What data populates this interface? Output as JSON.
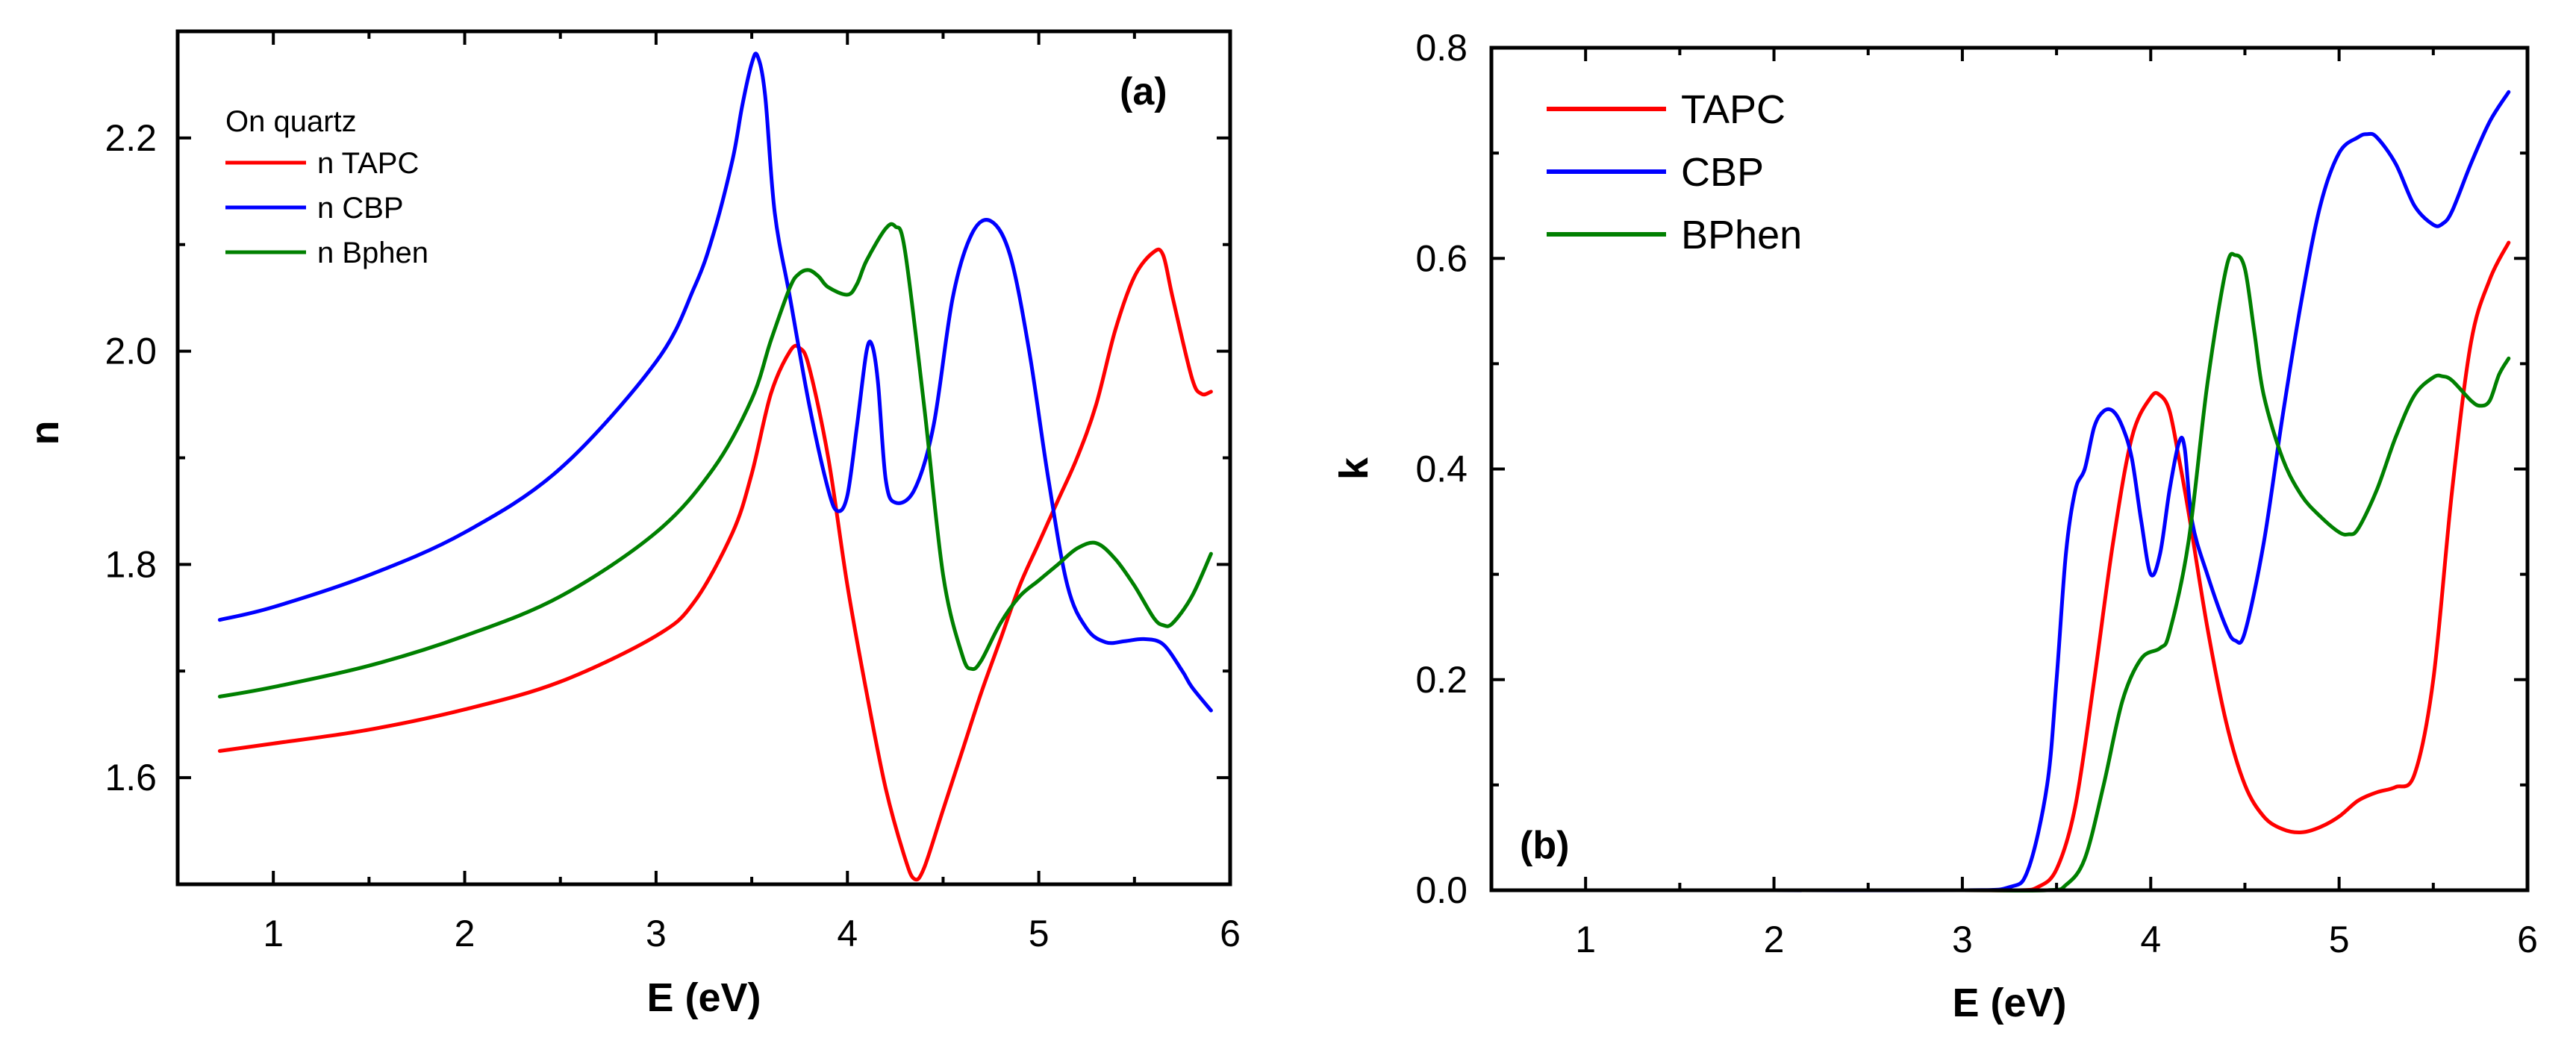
{
  "chart_data": [
    {
      "type": "line",
      "panel_label": "(a)",
      "xlabel": "E (eV)",
      "ylabel": "n",
      "xlim": [
        0.5,
        6
      ],
      "ylim": [
        1.5,
        2.3
      ],
      "xticks": [
        1,
        2,
        3,
        4,
        5,
        6
      ],
      "xtick_labels": [
        "1",
        "2",
        "3",
        "4",
        "5",
        "6"
      ],
      "yticks": [
        1.6,
        1.8,
        2.0,
        2.2
      ],
      "ytick_labels": [
        "1.6",
        "1.8",
        "2.0",
        "2.2"
      ],
      "legend_title": "On quartz",
      "legend_position": "top-left",
      "series": [
        {
          "name": "n TAPC",
          "color": "#ff0000",
          "x": [
            0.72,
            1.0,
            1.5,
            2.0,
            2.5,
            3.0,
            3.2,
            3.4,
            3.5,
            3.6,
            3.7,
            3.75,
            3.8,
            3.9,
            4.0,
            4.1,
            4.2,
            4.3,
            4.35,
            4.4,
            4.5,
            4.6,
            4.7,
            4.8,
            4.9,
            5.0,
            5.1,
            5.2,
            5.3,
            5.4,
            5.5,
            5.6,
            5.65,
            5.7,
            5.8,
            5.85,
            5.9
          ],
          "y": [
            1.625,
            1.632,
            1.645,
            1.664,
            1.69,
            1.733,
            1.765,
            1.83,
            1.885,
            1.96,
            2.0,
            2.003,
            1.985,
            1.9,
            1.78,
            1.68,
            1.59,
            1.525,
            1.505,
            1.515,
            1.57,
            1.625,
            1.68,
            1.73,
            1.78,
            1.82,
            1.86,
            1.9,
            1.95,
            2.02,
            2.07,
            2.093,
            2.09,
            2.05,
            1.975,
            1.96,
            1.962
          ]
        },
        {
          "name": "n CBP",
          "color": "#0000ff",
          "x": [
            0.72,
            1.0,
            1.5,
            2.0,
            2.5,
            3.0,
            3.2,
            3.3,
            3.4,
            3.45,
            3.5,
            3.53,
            3.57,
            3.62,
            3.7,
            3.8,
            3.9,
            3.95,
            4.0,
            4.05,
            4.1,
            4.13,
            4.16,
            4.2,
            4.25,
            4.35,
            4.45,
            4.55,
            4.65,
            4.75,
            4.85,
            4.95,
            5.05,
            5.15,
            5.25,
            5.35,
            5.45,
            5.55,
            5.65,
            5.75,
            5.8,
            5.9
          ],
          "y": [
            1.748,
            1.76,
            1.79,
            1.83,
            1.89,
            1.99,
            2.06,
            2.11,
            2.18,
            2.23,
            2.27,
            2.277,
            2.24,
            2.13,
            2.05,
            1.95,
            1.87,
            1.85,
            1.865,
            1.93,
            2.0,
            2.005,
            1.97,
            1.88,
            1.858,
            1.87,
            1.93,
            2.05,
            2.11,
            2.122,
            2.09,
            2.0,
            1.88,
            1.78,
            1.74,
            1.727,
            1.728,
            1.73,
            1.725,
            1.7,
            1.685,
            1.663
          ]
        },
        {
          "name": "n Bphen",
          "color": "#008000",
          "x": [
            0.72,
            1.0,
            1.5,
            2.0,
            2.5,
            3.0,
            3.3,
            3.5,
            3.6,
            3.7,
            3.75,
            3.8,
            3.85,
            3.9,
            4.0,
            4.05,
            4.1,
            4.2,
            4.25,
            4.3,
            4.4,
            4.5,
            4.6,
            4.65,
            4.7,
            4.8,
            4.9,
            5.0,
            5.1,
            5.2,
            5.3,
            5.4,
            5.5,
            5.6,
            5.65,
            5.7,
            5.8,
            5.9
          ],
          "y": [
            1.676,
            1.685,
            1.705,
            1.733,
            1.77,
            1.83,
            1.89,
            1.955,
            2.01,
            2.06,
            2.073,
            2.076,
            2.07,
            2.06,
            2.053,
            2.063,
            2.085,
            2.115,
            2.117,
            2.095,
            1.95,
            1.79,
            1.715,
            1.702,
            1.71,
            1.745,
            1.77,
            1.785,
            1.8,
            1.815,
            1.82,
            1.805,
            1.78,
            1.75,
            1.743,
            1.745,
            1.77,
            1.81
          ]
        }
      ]
    },
    {
      "type": "line",
      "panel_label": "(b)",
      "xlabel": "E (eV)",
      "ylabel": "k",
      "xlim": [
        0.5,
        6
      ],
      "ylim": [
        0,
        0.8
      ],
      "xticks": [
        1,
        2,
        3,
        4,
        5,
        6
      ],
      "xtick_labels": [
        "1",
        "2",
        "3",
        "4",
        "5",
        "6"
      ],
      "yticks": [
        0,
        0.2,
        0.4,
        0.6,
        0.8
      ],
      "ytick_labels": [
        "0.0",
        "0.2",
        "0.4",
        "0.6",
        "0.8"
      ],
      "legend_position": "top-left",
      "series": [
        {
          "name": "TAPC",
          "color": "#ff0000",
          "x": [
            0.72,
            1.0,
            2.0,
            3.0,
            3.3,
            3.4,
            3.5,
            3.6,
            3.7,
            3.8,
            3.9,
            4.0,
            4.05,
            4.1,
            4.15,
            4.2,
            4.3,
            4.4,
            4.5,
            4.6,
            4.7,
            4.8,
            4.9,
            5.0,
            5.1,
            5.2,
            5.3,
            5.4,
            5.5,
            5.6,
            5.7,
            5.8,
            5.9
          ],
          "y": [
            0.0,
            0.0,
            0.0,
            0.0,
            0.0,
            0.003,
            0.02,
            0.08,
            0.2,
            0.33,
            0.43,
            0.468,
            0.47,
            0.455,
            0.41,
            0.36,
            0.25,
            0.16,
            0.1,
            0.07,
            0.058,
            0.055,
            0.06,
            0.07,
            0.085,
            0.093,
            0.098,
            0.11,
            0.2,
            0.38,
            0.52,
            0.58,
            0.615
          ]
        },
        {
          "name": "CBP",
          "color": "#0000ff",
          "x": [
            0.72,
            1.0,
            2.0,
            3.0,
            3.25,
            3.35,
            3.45,
            3.5,
            3.55,
            3.6,
            3.65,
            3.7,
            3.75,
            3.8,
            3.85,
            3.9,
            3.95,
            4.0,
            4.05,
            4.1,
            4.15,
            4.18,
            4.22,
            4.3,
            4.4,
            4.45,
            4.5,
            4.6,
            4.7,
            4.8,
            4.9,
            5.0,
            5.1,
            5.15,
            5.2,
            5.3,
            5.4,
            5.5,
            5.55,
            5.6,
            5.7,
            5.8,
            5.9
          ],
          "y": [
            0.0,
            0.0,
            0.0,
            0.0,
            0.003,
            0.02,
            0.1,
            0.2,
            0.32,
            0.38,
            0.4,
            0.44,
            0.455,
            0.455,
            0.44,
            0.41,
            0.35,
            0.3,
            0.32,
            0.38,
            0.425,
            0.42,
            0.35,
            0.3,
            0.25,
            0.237,
            0.245,
            0.33,
            0.45,
            0.56,
            0.65,
            0.7,
            0.715,
            0.718,
            0.715,
            0.69,
            0.65,
            0.632,
            0.633,
            0.645,
            0.69,
            0.73,
            0.758
          ]
        },
        {
          "name": "BPhen",
          "color": "#008000",
          "x": [
            0.72,
            1.0,
            2.0,
            3.0,
            3.45,
            3.55,
            3.65,
            3.75,
            3.85,
            3.95,
            4.05,
            4.1,
            4.2,
            4.3,
            4.4,
            4.45,
            4.5,
            4.55,
            4.6,
            4.7,
            4.8,
            4.9,
            5.0,
            5.05,
            5.1,
            5.2,
            5.3,
            5.4,
            5.5,
            5.55,
            5.6,
            5.7,
            5.75,
            5.8,
            5.85,
            5.9
          ],
          "y": [
            0.0,
            0.0,
            0.0,
            0.0,
            0.0,
            0.005,
            0.03,
            0.1,
            0.18,
            0.22,
            0.23,
            0.245,
            0.33,
            0.48,
            0.59,
            0.603,
            0.59,
            0.53,
            0.47,
            0.41,
            0.375,
            0.355,
            0.34,
            0.338,
            0.343,
            0.38,
            0.43,
            0.47,
            0.487,
            0.488,
            0.484,
            0.465,
            0.46,
            0.465,
            0.49,
            0.505
          ]
        }
      ]
    }
  ]
}
